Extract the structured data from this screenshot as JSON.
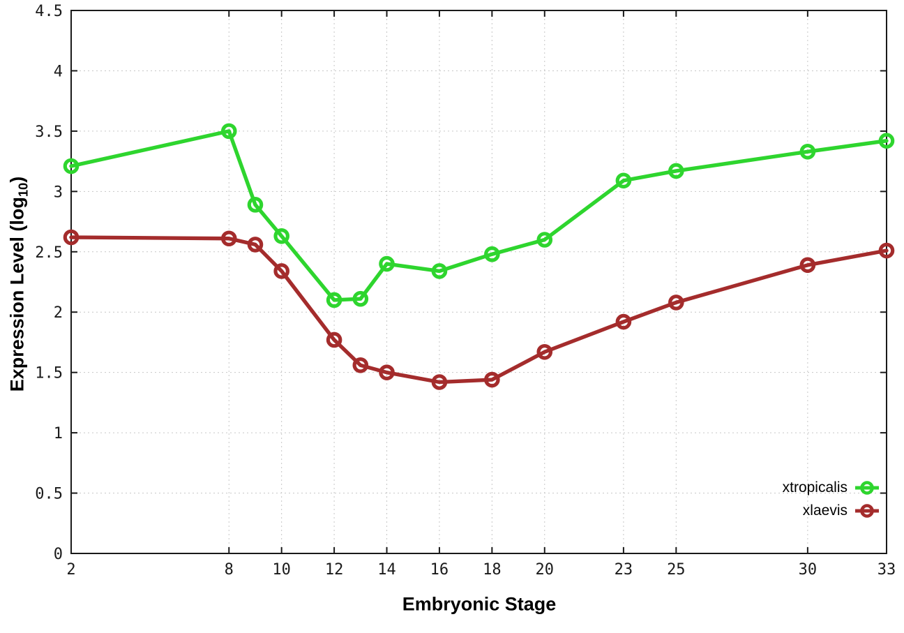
{
  "chart_data": {
    "type": "line",
    "title": "",
    "xlabel": "Embryonic Stage",
    "ylabel": "Expression Level (log10)",
    "ylabel_parts": {
      "prefix": "Expression Level (log",
      "subscript": "10",
      "suffix": ")"
    },
    "xlim": [
      2,
      33
    ],
    "ylim": [
      0,
      4.5
    ],
    "grid": true,
    "grid_style": "dotted",
    "legend_position": "bottom-right-inside",
    "x_ticks": [
      2,
      8,
      10,
      12,
      14,
      16,
      18,
      20,
      23,
      25,
      30,
      33
    ],
    "x_tick_labels": [
      "2",
      "8",
      "10",
      "12",
      "14",
      "16",
      "18",
      "20",
      "23",
      "25",
      "30",
      "33"
    ],
    "y_ticks": [
      0,
      0.5,
      1,
      1.5,
      2,
      2.5,
      3,
      3.5,
      4,
      4.5
    ],
    "y_tick_labels": [
      "0",
      "0.5",
      "1",
      "1.5",
      "2",
      "2.5",
      "3",
      "3.5",
      "4",
      "4.5"
    ],
    "series": [
      {
        "name": "xtropicalis",
        "color": "#2ed52e",
        "marker": "open-circle",
        "x": [
          2,
          8,
          9,
          10,
          12,
          13,
          14,
          16,
          18,
          20,
          23,
          25,
          30,
          33
        ],
        "y": [
          3.21,
          3.5,
          2.89,
          2.63,
          2.1,
          2.11,
          2.4,
          2.34,
          2.48,
          2.6,
          3.09,
          3.17,
          3.33,
          3.42
        ]
      },
      {
        "name": "xlaevis",
        "color": "#a42c2c",
        "marker": "open-circle",
        "x": [
          2,
          8,
          9,
          10,
          12,
          13,
          14,
          16,
          18,
          20,
          23,
          25,
          30,
          33
        ],
        "y": [
          2.62,
          2.61,
          2.56,
          2.34,
          1.77,
          1.56,
          1.5,
          1.42,
          1.44,
          1.67,
          1.92,
          2.08,
          2.39,
          2.51
        ]
      }
    ],
    "colors": {
      "background": "#ffffff",
      "grid": "#c6c6c6",
      "border": "#1a1a1a",
      "tick_text": "#1a1a1a"
    }
  }
}
